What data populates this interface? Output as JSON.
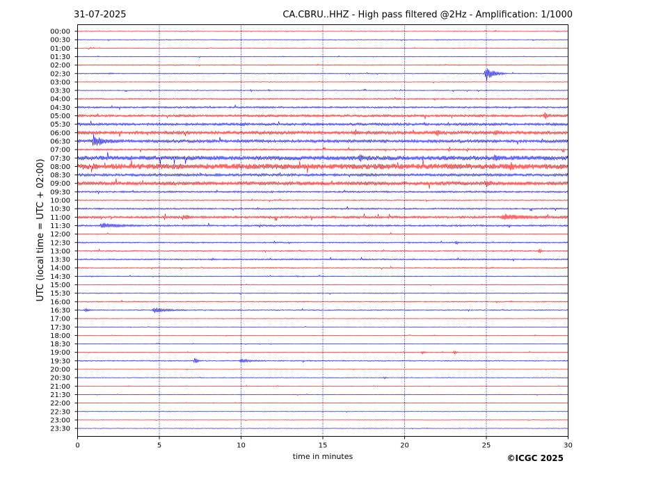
{
  "header": {
    "date": "31-07-2025",
    "title": "CA.CBRU..HHZ - High pass filtered @2Hz - Amplification: 1/1000"
  },
  "footer": {
    "copyright": "©ICGC 2025"
  },
  "colors": {
    "red_trace": "#ff0000",
    "blue_trace": "#0000ff",
    "grid": "#000080",
    "frame": "#000000"
  },
  "chart_data": {
    "type": "line",
    "title": "CA.CBRU..HHZ - High pass filtered @2Hz - Amplification: 1/1000",
    "xlabel": "time in minutes",
    "ylabel": "UTC (local time = UTC + 02:00)",
    "xlim": [
      0,
      30
    ],
    "x_ticks": [
      "0",
      "5",
      "10",
      "15",
      "20",
      "25",
      "30"
    ],
    "x_tick_values": [
      0,
      5,
      10,
      15,
      20,
      25,
      30
    ],
    "vertical_grid_at_minutes": [
      5,
      10,
      15,
      20,
      25
    ],
    "legend": "none",
    "trace_colors_alternate": [
      "red",
      "blue"
    ],
    "rows": [
      "00:00",
      "00:30",
      "01:00",
      "01:30",
      "02:00",
      "02:30",
      "03:00",
      "03:30",
      "04:00",
      "04:30",
      "05:00",
      "05:30",
      "06:00",
      "06:30",
      "07:00",
      "07:30",
      "08:00",
      "08:30",
      "09:00",
      "09:30",
      "10:00",
      "10:30",
      "11:00",
      "11:30",
      "12:00",
      "12:30",
      "13:00",
      "13:30",
      "14:00",
      "14:30",
      "15:00",
      "15:30",
      "16:00",
      "16:30",
      "17:00",
      "17:30",
      "18:00",
      "18:30",
      "19:00",
      "19:30",
      "20:00",
      "20:30",
      "21:00",
      "21:30",
      "22:00",
      "22:30",
      "23:00",
      "23:30"
    ],
    "row_noise_level": [
      0.4,
      0.4,
      0.4,
      0.4,
      0.5,
      0.5,
      0.4,
      0.5,
      0.8,
      1.0,
      1.4,
      1.5,
      2.0,
      1.8,
      1.0,
      2.6,
      3.2,
      1.6,
      2.2,
      1.0,
      0.6,
      0.9,
      1.4,
      1.0,
      0.5,
      0.7,
      0.7,
      0.8,
      0.6,
      0.5,
      0.4,
      0.5,
      0.6,
      0.6,
      0.4,
      0.3,
      0.3,
      0.3,
      0.4,
      0.6,
      0.3,
      0.4,
      0.3,
      0.3,
      0.3,
      0.3,
      0.3,
      0.3
    ],
    "events": [
      {
        "row": "02:30",
        "minute": 25.0,
        "amplitude": 12,
        "duration": 1.2
      },
      {
        "row": "02:30",
        "minute": 2.0,
        "amplitude": 1.5,
        "duration": 0.3
      },
      {
        "row": "05:00",
        "minute": 28.6,
        "amplitude": 6,
        "duration": 0.3
      },
      {
        "row": "05:30",
        "minute": 10.1,
        "amplitude": 3,
        "duration": 0.4
      },
      {
        "row": "06:00",
        "minute": 22.0,
        "amplitude": 4,
        "duration": 0.3
      },
      {
        "row": "06:00",
        "minute": 25.6,
        "amplitude": 4,
        "duration": 0.4
      },
      {
        "row": "06:30",
        "minute": 1.0,
        "amplitude": 9,
        "duration": 1.5
      },
      {
        "row": "07:30",
        "minute": 17.3,
        "amplitude": 5,
        "duration": 0.4
      },
      {
        "row": "07:30",
        "minute": 25.5,
        "amplitude": 4,
        "duration": 0.6
      },
      {
        "row": "08:00",
        "minute": 26.5,
        "amplitude": 4,
        "duration": 0.5
      },
      {
        "row": "09:00",
        "minute": 25.0,
        "amplitude": 4,
        "duration": 0.5
      },
      {
        "row": "11:00",
        "minute": 6.7,
        "amplitude": 5,
        "duration": 0.2
      },
      {
        "row": "11:00",
        "minute": 26.0,
        "amplitude": 4,
        "duration": 4.0
      },
      {
        "row": "11:30",
        "minute": 1.5,
        "amplitude": 4,
        "duration": 2.5
      },
      {
        "row": "12:30",
        "minute": 23.2,
        "amplitude": 3,
        "duration": 0.2
      },
      {
        "row": "13:00",
        "minute": 28.3,
        "amplitude": 4,
        "duration": 0.2
      },
      {
        "row": "16:30",
        "minute": 4.7,
        "amplitude": 4,
        "duration": 2.0
      },
      {
        "row": "16:30",
        "minute": 0.5,
        "amplitude": 3,
        "duration": 0.4
      },
      {
        "row": "19:00",
        "minute": 23.1,
        "amplitude": 4,
        "duration": 0.2
      },
      {
        "row": "19:00",
        "minute": 21.1,
        "amplitude": 2.5,
        "duration": 0.3
      },
      {
        "row": "19:30",
        "minute": 7.2,
        "amplitude": 5,
        "duration": 0.4
      },
      {
        "row": "19:30",
        "minute": 10.0,
        "amplitude": 3,
        "duration": 1.5
      },
      {
        "row": "20:30",
        "minute": 18.8,
        "amplitude": 2,
        "duration": 0.2
      }
    ]
  }
}
